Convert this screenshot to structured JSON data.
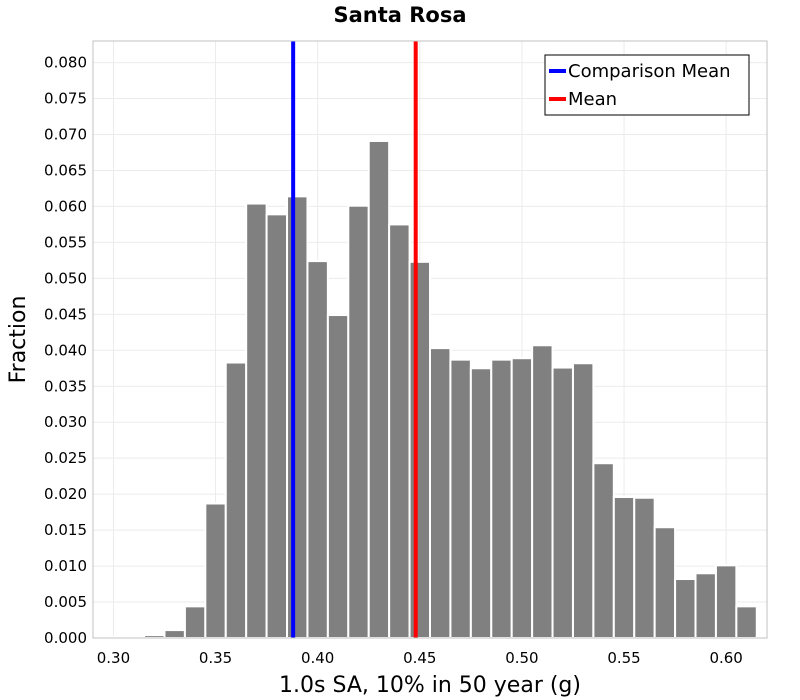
{
  "chart_data": {
    "type": "bar",
    "title": "Santa Rosa",
    "xlabel": "1.0s SA, 10% in 50 year (g)",
    "ylabel": "Fraction",
    "xlim": [
      0.29,
      0.62
    ],
    "ylim": [
      0,
      0.083
    ],
    "grid": true,
    "legend_position": "top-right",
    "x_ticks": [
      0.3,
      0.35,
      0.4,
      0.45,
      0.5,
      0.55,
      0.6
    ],
    "x_tick_labels": [
      "0.30",
      "0.35",
      "0.40",
      "0.45",
      "0.50",
      "0.55",
      "0.60"
    ],
    "y_ticks": [
      0.0,
      0.005,
      0.01,
      0.015,
      0.02,
      0.025,
      0.03,
      0.035,
      0.04,
      0.045,
      0.05,
      0.055,
      0.06,
      0.065,
      0.07,
      0.075,
      0.08
    ],
    "y_tick_labels": [
      "0.000",
      "0.005",
      "0.010",
      "0.015",
      "0.020",
      "0.025",
      "0.030",
      "0.035",
      "0.040",
      "0.045",
      "0.050",
      "0.055",
      "0.060",
      "0.065",
      "0.070",
      "0.075",
      "0.080"
    ],
    "bin_width": 0.01,
    "bins": [
      {
        "center": 0.3,
        "value": 0.0001
      },
      {
        "center": 0.31,
        "value": 0.0002
      },
      {
        "center": 0.32,
        "value": 0.0004
      },
      {
        "center": 0.33,
        "value": 0.0011
      },
      {
        "center": 0.34,
        "value": 0.0044
      },
      {
        "center": 0.35,
        "value": 0.0187
      },
      {
        "center": 0.36,
        "value": 0.0383
      },
      {
        "center": 0.37,
        "value": 0.0604
      },
      {
        "center": 0.38,
        "value": 0.0589
      },
      {
        "center": 0.39,
        "value": 0.0614
      },
      {
        "center": 0.4,
        "value": 0.0524
      },
      {
        "center": 0.41,
        "value": 0.0449
      },
      {
        "center": 0.42,
        "value": 0.0601
      },
      {
        "center": 0.43,
        "value": 0.0691
      },
      {
        "center": 0.44,
        "value": 0.0575
      },
      {
        "center": 0.45,
        "value": 0.0523
      },
      {
        "center": 0.46,
        "value": 0.0403
      },
      {
        "center": 0.47,
        "value": 0.0387
      },
      {
        "center": 0.48,
        "value": 0.0375
      },
      {
        "center": 0.49,
        "value": 0.0387
      },
      {
        "center": 0.5,
        "value": 0.0389
      },
      {
        "center": 0.51,
        "value": 0.0407
      },
      {
        "center": 0.52,
        "value": 0.0376
      },
      {
        "center": 0.53,
        "value": 0.0382
      },
      {
        "center": 0.54,
        "value": 0.0243
      },
      {
        "center": 0.55,
        "value": 0.0196
      },
      {
        "center": 0.56,
        "value": 0.0195
      },
      {
        "center": 0.57,
        "value": 0.0154
      },
      {
        "center": 0.58,
        "value": 0.0082
      },
      {
        "center": 0.59,
        "value": 0.009
      },
      {
        "center": 0.6,
        "value": 0.0101
      },
      {
        "center": 0.61,
        "value": 0.0044
      },
      {
        "center": 0.62,
        "value": 0.0002
      }
    ],
    "vlines": [
      {
        "name": "Comparison Mean",
        "x": 0.388,
        "color": "#0000ff"
      },
      {
        "name": "Mean",
        "x": 0.448,
        "color": "#ff0000"
      }
    ],
    "bar_color": "#808080"
  }
}
